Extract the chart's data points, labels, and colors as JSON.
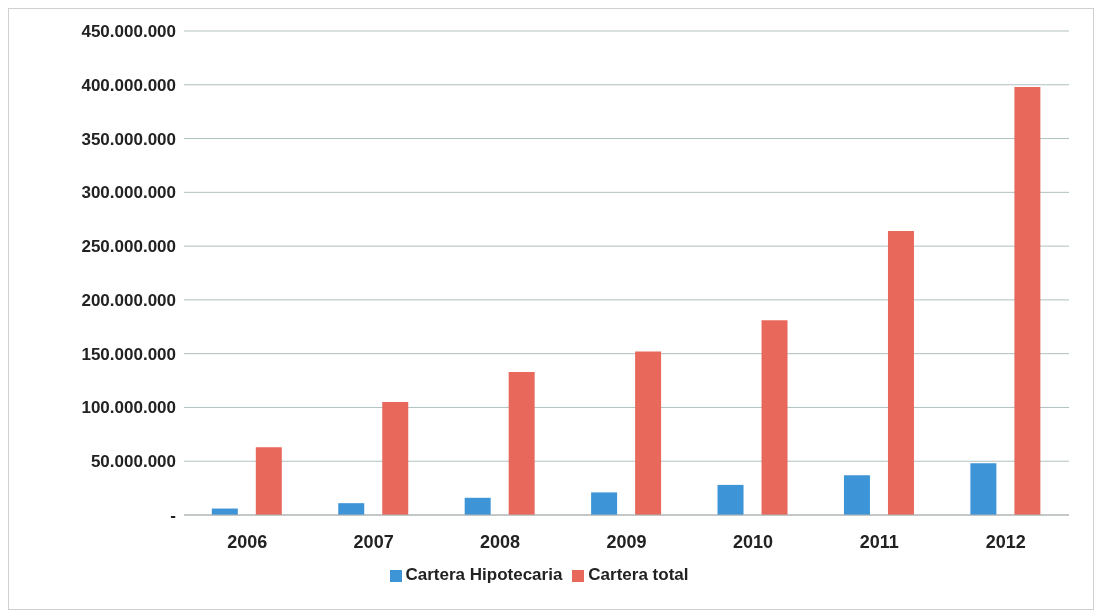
{
  "chart_data": {
    "type": "bar",
    "categories": [
      "2006",
      "2007",
      "2008",
      "2009",
      "2010",
      "2011",
      "2012"
    ],
    "series": [
      {
        "name": "Cartera Hipotecaria",
        "color": "#3d94d6",
        "values": [
          6000000,
          11000000,
          16000000,
          21000000,
          28000000,
          37000000,
          48000000
        ]
      },
      {
        "name": "Cartera total",
        "color": "#e8685c",
        "values": [
          63000000,
          105000000,
          133000000,
          152000000,
          181000000,
          264000000,
          398000000
        ]
      }
    ],
    "ylim": [
      0,
      450000000
    ],
    "yticks": [
      {
        "value": 0,
        "label": "-"
      },
      {
        "value": 50000000,
        "label": "50.000.000"
      },
      {
        "value": 100000000,
        "label": "100.000.000"
      },
      {
        "value": 150000000,
        "label": "150.000.000"
      },
      {
        "value": 200000000,
        "label": "200.000.000"
      },
      {
        "value": 250000000,
        "label": "250.000.000"
      },
      {
        "value": 300000000,
        "label": "300.000.000"
      },
      {
        "value": 350000000,
        "label": "350.000.000"
      },
      {
        "value": 400000000,
        "label": "400.000.000"
      },
      {
        "value": 450000000,
        "label": "450.000.000"
      }
    ],
    "grid": "y",
    "legend": "bottom"
  }
}
